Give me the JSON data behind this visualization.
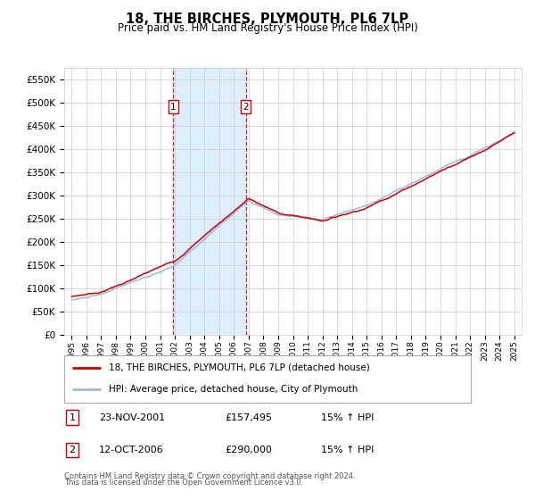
{
  "title": "18, THE BIRCHES, PLYMOUTH, PL6 7LP",
  "subtitle": "Price paid vs. HM Land Registry's House Price Index (HPI)",
  "ylim": [
    0,
    575000
  ],
  "yticks": [
    0,
    50000,
    100000,
    150000,
    200000,
    250000,
    300000,
    350000,
    400000,
    450000,
    500000,
    550000
  ],
  "xlim_start": 1994.5,
  "xlim_end": 2025.5,
  "sale1_x": 2001.9,
  "sale1_y": 157495,
  "sale1_label": "1",
  "sale1_date": "23-NOV-2001",
  "sale1_price": "£157,495",
  "sale1_hpi": "15% ↑ HPI",
  "sale2_x": 2006.8,
  "sale2_y": 290000,
  "sale2_label": "2",
  "sale2_date": "12-OCT-2006",
  "sale2_price": "£290,000",
  "sale2_hpi": "15% ↑ HPI",
  "legend_line1": "18, THE BIRCHES, PLYMOUTH, PL6 7LP (detached house)",
  "legend_line2": "HPI: Average price, detached house, City of Plymouth",
  "footer1": "Contains HM Land Registry data © Crown copyright and database right 2024.",
  "footer2": "This data is licensed under the Open Government Licence v3.0.",
  "line_red_color": "#cc0000",
  "line_blue_color": "#99bbdd",
  "shading_color": "#ddeeff",
  "grid_color": "#cccccc",
  "background_color": "#ffffff",
  "sale_box_color": "#cc0000",
  "vline_color": "#cc0000"
}
